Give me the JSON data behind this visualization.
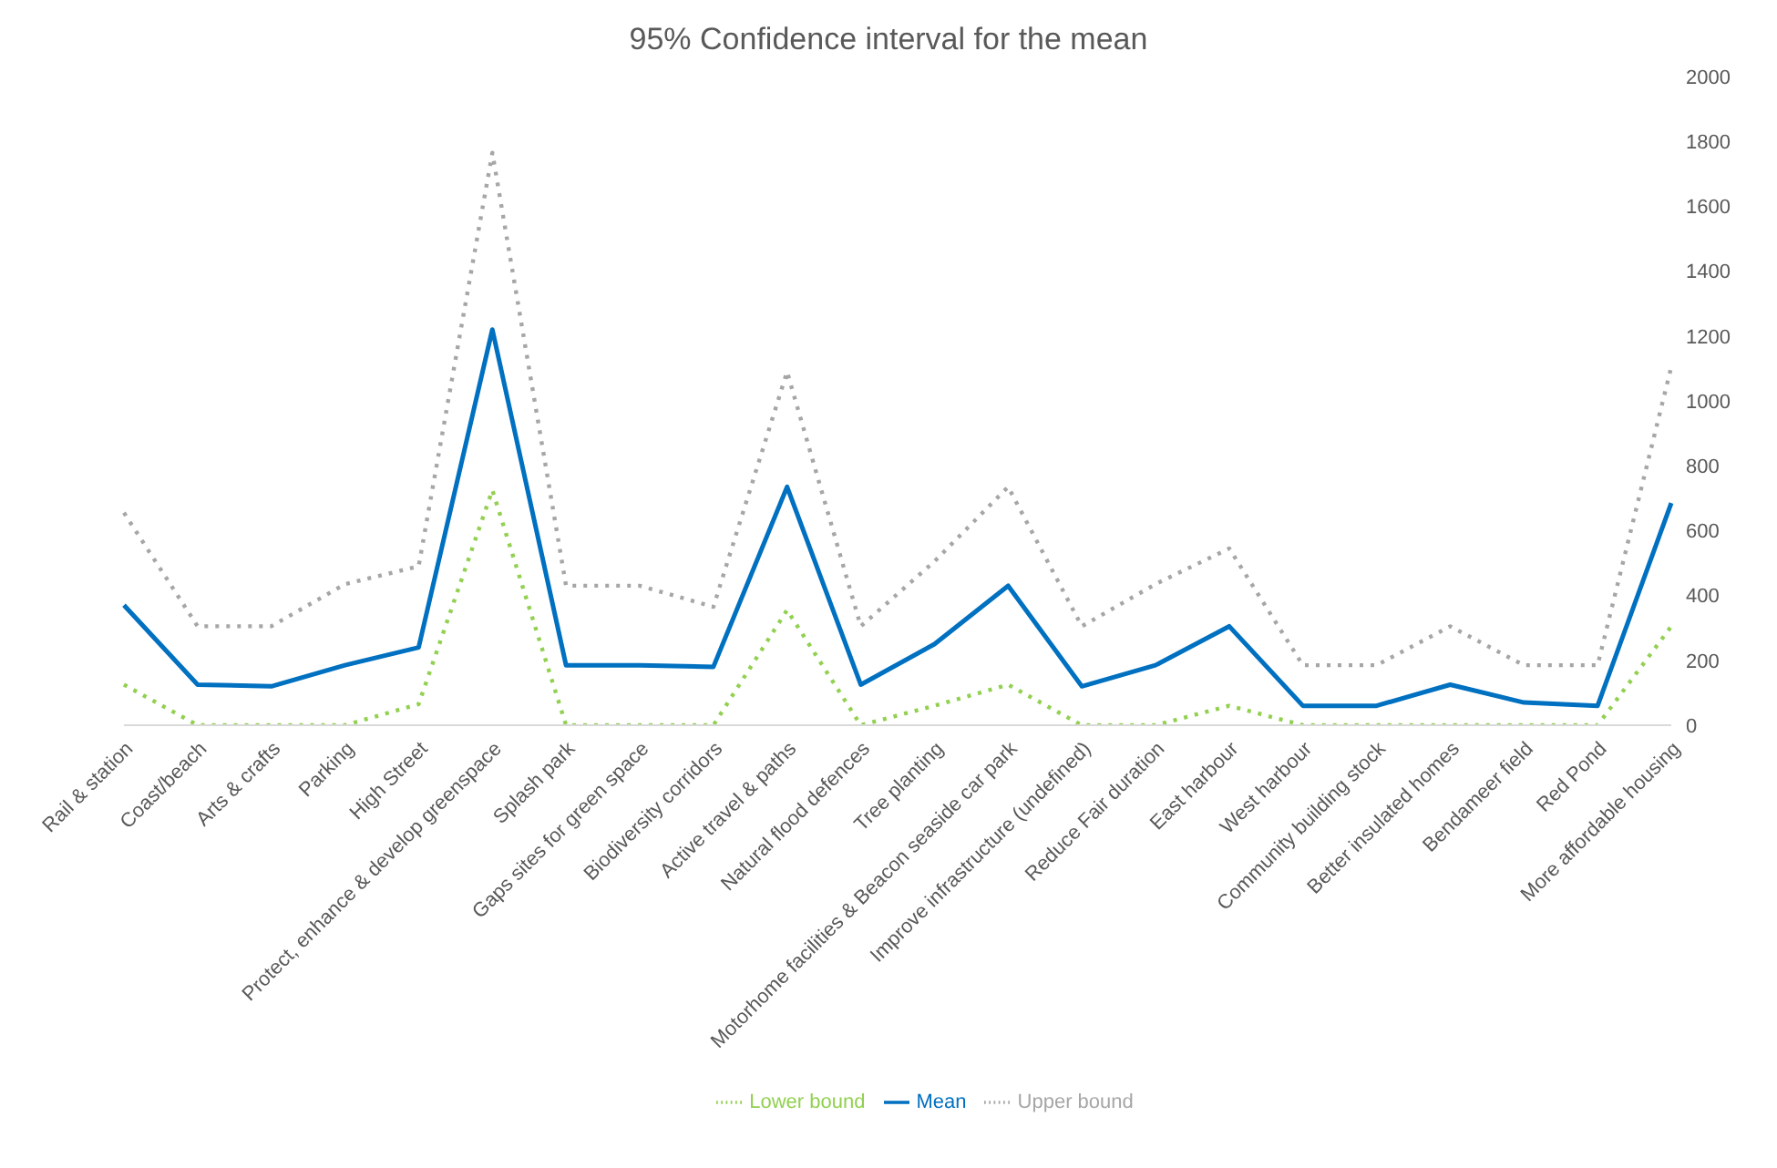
{
  "chart_data": {
    "type": "line",
    "title": "95% Confidence  interval for the mean",
    "categories": [
      "Rail & station",
      "Coast/beach",
      "Arts & crafts",
      "Parking",
      "High Street",
      "Protect, enhance & develop greenspace",
      "Splash park",
      "Gaps sites for green space",
      "Biodiversity corridors",
      "Active travel & paths",
      "Natural flood defences",
      "Tree planting",
      "Motorhome facilities & Beacon seaside car park",
      "Improve infrastructure (undefined)",
      "Reduce Fair duration",
      "East harbour",
      "West harbour",
      "Community building stock",
      "Better insulated homes",
      "Bendameer field",
      "Red Pond",
      "More affordable housing"
    ],
    "series": [
      {
        "name": "Lower bound",
        "color": "#92d050",
        "line_style": "dotted",
        "values": [
          125,
          0,
          0,
          0,
          65,
          725,
          0,
          0,
          0,
          355,
          0,
          60,
          125,
          0,
          0,
          60,
          0,
          0,
          0,
          0,
          0,
          305
        ]
      },
      {
        "name": "Mean",
        "color": "#0070c0",
        "line_style": "solid",
        "values": [
          370,
          125,
          120,
          185,
          240,
          1220,
          185,
          185,
          180,
          735,
          125,
          250,
          430,
          120,
          185,
          305,
          60,
          60,
          125,
          70,
          60,
          685
        ]
      },
      {
        "name": "Upper bound",
        "color": "#a6a6a6",
        "line_style": "dotted",
        "values": [
          655,
          305,
          305,
          435,
          490,
          1765,
          430,
          430,
          365,
          1090,
          305,
          505,
          735,
          305,
          435,
          545,
          185,
          185,
          305,
          185,
          185,
          1105
        ]
      }
    ],
    "ylim": [
      0,
      2000
    ],
    "yticks": [
      0,
      200,
      400,
      600,
      800,
      1000,
      1200,
      1400,
      1600,
      1800,
      2000
    ],
    "grid": false,
    "legend": "bottom",
    "marker": "none"
  }
}
